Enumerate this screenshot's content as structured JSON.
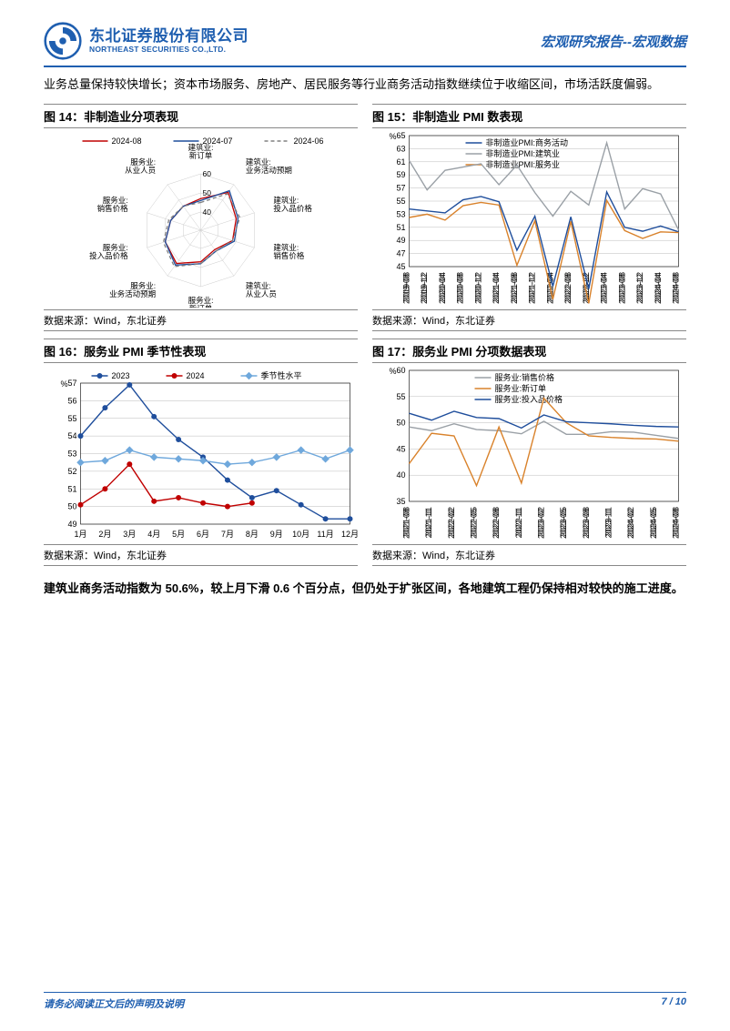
{
  "header": {
    "logo_cn": "东北证券股份有限公司",
    "logo_en": "NORTHEAST SECURITIES CO.,LTD.",
    "right": "宏观研究报告--宏观数据"
  },
  "intro_text": "业务总量保持较快增长；资本市场服务、房地产、居民服务等行业商务活动指数继续位于收缩区间，市场活跃度偏弱。",
  "body_text": "建筑业商务活动指数为 50.6%，较上月下滑 0.6 个百分点，但仍处于扩张区间，各地建筑工程仍保持相对较快的施工进度。",
  "footer": {
    "left": "请务必阅读正文后的声明及说明",
    "right_page": "7 / 10"
  },
  "chart14": {
    "title": "图 14：非制造业分项表现",
    "source": "数据来源：Wind，东北证券",
    "type": "radar",
    "legend": [
      {
        "label": "2024-08",
        "color": "#c00000",
        "dash": "none"
      },
      {
        "label": "2024-07",
        "color": "#1f4e9c",
        "dash": "none"
      },
      {
        "label": "2024-06",
        "color": "#808080",
        "dash": "4,3"
      }
    ],
    "axes": [
      "建筑业:新订单",
      "建筑业:业务活动预期",
      "建筑业:投入品价格",
      "建筑业:销售价格",
      "建筑业:从业人员",
      "服务业:新订单",
      "服务业:业务活动预期",
      "服务业:投入品价格",
      "服务业:销售价格",
      "服务业:从业人员"
    ],
    "ring_values": [
      40,
      50,
      60
    ],
    "series": {
      "2024-08": [
        47,
        55,
        50,
        48,
        43,
        47,
        52,
        50,
        47,
        46
      ],
      "2024-07": [
        46,
        56,
        51,
        49,
        44,
        48,
        53,
        50,
        47,
        46
      ],
      "2024-06": [
        45,
        54,
        52,
        48,
        44,
        48,
        54,
        51,
        48,
        46
      ]
    },
    "background_color": "#ffffff"
  },
  "chart15": {
    "title": "图 15：非制造业 PMI 数表现",
    "source": "数据来源：Wind，东北证券",
    "type": "line",
    "ylabel": "%",
    "ylim": [
      45,
      65
    ],
    "ytick_step": 2,
    "legend": [
      {
        "label": "非制造业PMI:商务活动",
        "color": "#1f4e9c"
      },
      {
        "label": "非制造业PMI:建筑业",
        "color": "#9aa0a6"
      },
      {
        "label": "非制造业PMI:服务业",
        "color": "#d9822b"
      }
    ],
    "x_labels": [
      "2019-08",
      "2019-12",
      "2020-04",
      "2020-08",
      "2020-12",
      "2021-04",
      "2021-08",
      "2021-12",
      "2022-04",
      "2022-08",
      "2022-12",
      "2023-04",
      "2023-08",
      "2023-12",
      "2024-04",
      "2024-08"
    ],
    "series": {
      "商务活动": [
        53.8,
        53.5,
        53.2,
        55.2,
        55.7,
        54.9,
        47.5,
        52.7,
        42,
        52.6,
        41.6,
        56.4,
        51,
        50.4,
        51.2,
        50.3
      ],
      "建筑业": [
        61.2,
        56.7,
        59.7,
        60.2,
        60.7,
        57.5,
        60.5,
        56.3,
        52.7,
        56.5,
        54.4,
        63.9,
        53.8,
        56.9,
        56.1,
        50.6
      ],
      "服务业": [
        52.5,
        53,
        52.1,
        54.3,
        54.8,
        54.4,
        45.2,
        52,
        40,
        51.9,
        39.4,
        55.1,
        50.5,
        49.3,
        50.3,
        50.2
      ]
    },
    "background_color": "#ffffff",
    "grid_color": "#d8d8d8"
  },
  "chart16": {
    "title": "图 16：服务业 PMI 季节性表现",
    "source": "数据来源：Wind，东北证券",
    "type": "line",
    "ylabel": "%",
    "ylim": [
      49,
      57
    ],
    "ytick_step": 1,
    "x_labels": [
      "1月",
      "2月",
      "3月",
      "4月",
      "5月",
      "6月",
      "7月",
      "8月",
      "9月",
      "10月",
      "11月",
      "12月"
    ],
    "legend": [
      {
        "label": "2023",
        "color": "#1f4e9c",
        "marker": "circle"
      },
      {
        "label": "2024",
        "color": "#c00000",
        "marker": "circle"
      },
      {
        "label": "季节性水平",
        "color": "#6fa8dc",
        "marker": "diamond"
      }
    ],
    "series": {
      "2023": [
        54.0,
        55.6,
        56.9,
        55.1,
        53.8,
        52.8,
        51.5,
        50.5,
        50.9,
        50.1,
        49.3,
        49.3
      ],
      "2024": [
        50.1,
        51.0,
        52.4,
        50.3,
        50.5,
        50.2,
        50.0,
        50.2,
        null,
        null,
        null,
        null
      ],
      "季节": [
        52.5,
        52.6,
        53.2,
        52.8,
        52.7,
        52.6,
        52.4,
        52.5,
        52.8,
        53.2,
        52.7,
        53.2
      ]
    },
    "background_color": "#ffffff",
    "grid_color": "#d8d8d8"
  },
  "chart17": {
    "title": "图 17：服务业 PMI 分项数据表现",
    "source": "数据来源：Wind，东北证券",
    "type": "line",
    "ylabel": "%",
    "ylim": [
      35,
      60
    ],
    "ytick_step": 5,
    "x_labels": [
      "2021-08",
      "2021-11",
      "2022-02",
      "2022-05",
      "2022-08",
      "2022-11",
      "2023-02",
      "2023-05",
      "2023-08",
      "2023-11",
      "2024-02",
      "2024-05",
      "2024-08"
    ],
    "legend": [
      {
        "label": "服务业:销售价格",
        "color": "#9aa0a6"
      },
      {
        "label": "服务业:新订单",
        "color": "#d9822b"
      },
      {
        "label": "服务业:投入品价格",
        "color": "#1f4e9c"
      }
    ],
    "series": {
      "销售价格": [
        49.2,
        48.5,
        49.8,
        48.7,
        48.5,
        47.9,
        50.3,
        47.8,
        47.8,
        48.3,
        48.2,
        47.6,
        47.0
      ],
      "新订单": [
        42.2,
        48.0,
        47.5,
        38.0,
        49.2,
        38.5,
        54.7,
        50.0,
        47.5,
        47.2,
        47.0,
        46.9,
        46.5
      ],
      "投入品": [
        51.8,
        50.5,
        52.2,
        51.0,
        50.8,
        49.0,
        51.5,
        50.2,
        50.0,
        49.8,
        49.5,
        49.3,
        49.2
      ]
    },
    "background_color": "#ffffff",
    "grid_color": "#d8d8d8"
  }
}
